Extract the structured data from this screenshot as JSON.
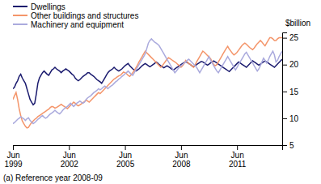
{
  "chart_data": {
    "type": "line",
    "y_label": "$billion",
    "annotations": [
      "(a) Reference year 2008-09"
    ],
    "ylim": [
      5,
      26
    ],
    "yticks": [
      5,
      10,
      15,
      20,
      25
    ],
    "grid": false,
    "legend": "upper left",
    "categories": [
      "Jun\n1999",
      null,
      null,
      null,
      null,
      null,
      null,
      null,
      null,
      null,
      null,
      null,
      null,
      null,
      null,
      null,
      null,
      null,
      null,
      null,
      null,
      null,
      null,
      null,
      null,
      null,
      null,
      null,
      null,
      null,
      null,
      null,
      null,
      null,
      null,
      null,
      "Jun\n2002",
      null,
      null,
      null,
      null,
      null,
      null,
      null,
      null,
      null,
      null,
      null,
      null,
      null,
      null,
      null,
      null,
      null,
      null,
      null,
      null,
      null,
      null,
      null,
      null,
      null,
      null,
      null,
      null,
      null,
      null,
      null,
      null,
      null,
      null,
      null,
      "Jun\n2005",
      null,
      null,
      null,
      null,
      null,
      null,
      null,
      null,
      null,
      null,
      null,
      null,
      null,
      null,
      null,
      null,
      null,
      null,
      null,
      null,
      null,
      null,
      null,
      null,
      null,
      null,
      null,
      null,
      null,
      null,
      null,
      null,
      null,
      null,
      null,
      "Jun\n2008",
      null,
      null,
      null,
      null,
      null,
      null,
      null,
      null,
      null,
      null,
      null,
      null,
      null,
      null,
      null,
      null,
      null,
      null,
      null,
      null,
      null,
      null,
      null,
      null,
      null,
      null,
      null,
      null,
      null,
      null,
      null,
      null,
      null,
      null,
      null,
      "Jun\n2011",
      null,
      null,
      null,
      null,
      null,
      null,
      null,
      null,
      null,
      null,
      null,
      null,
      null,
      null,
      null,
      null,
      null,
      null,
      null,
      null,
      null,
      null,
      null,
      null,
      null,
      null,
      null,
      null,
      null
    ],
    "series": [
      {
        "name": "Dwellings",
        "color": "#1a1a6e",
        "values": [
          15.5,
          15.8,
          16.5,
          17.0,
          17.8,
          18.2,
          17.5,
          17.0,
          16.5,
          15.5,
          14.5,
          13.5,
          13.0,
          12.5,
          12.8,
          14.5,
          16.5,
          17.5,
          18.0,
          18.5,
          18.8,
          18.5,
          18.2,
          18.0,
          18.5,
          19.0,
          19.2,
          19.5,
          19.2,
          19.0,
          18.8,
          18.5,
          18.8,
          19.0,
          19.2,
          19.0,
          18.8,
          18.5,
          18.2,
          18.0,
          17.5,
          17.2,
          17.0,
          17.2,
          17.5,
          17.8,
          18.0,
          18.2,
          18.5,
          18.5,
          18.2,
          18.0,
          17.8,
          17.5,
          17.2,
          17.0,
          16.8,
          16.5,
          17.0,
          17.5,
          18.0,
          18.5,
          18.8,
          19.0,
          19.2,
          19.5,
          19.2,
          19.0,
          18.8,
          19.0,
          19.2,
          19.5,
          19.8,
          20.0,
          20.2,
          19.8,
          19.5,
          19.2,
          19.0,
          18.8,
          19.0,
          19.2,
          19.5,
          19.8,
          20.0,
          20.2,
          20.0,
          19.8,
          19.6,
          19.8,
          20.0,
          20.2,
          20.5,
          20.3,
          20.0,
          19.8,
          19.6,
          19.4,
          19.6,
          19.8,
          19.6,
          19.4,
          19.2,
          19.0,
          19.2,
          19.4,
          19.6,
          19.8,
          20.0,
          20.2,
          20.4,
          20.5,
          20.4,
          20.2,
          20.0,
          19.8,
          19.6,
          19.8,
          20.0,
          20.2,
          20.4,
          20.6,
          20.5,
          20.3,
          20.1,
          19.9,
          20.1,
          20.3,
          20.5,
          20.7,
          20.5,
          20.3,
          20.1,
          19.9,
          19.7,
          19.5,
          19.3,
          19.1,
          18.9,
          18.7,
          19.0,
          19.3,
          19.6,
          19.9,
          20.2,
          20.5,
          20.3,
          20.1,
          19.9,
          19.7,
          19.5,
          19.8,
          20.1,
          20.4,
          20.7,
          20.5,
          20.3,
          20.1,
          19.9,
          20.1,
          20.3,
          20.5,
          20.7,
          20.5,
          20.3,
          20.1,
          19.9,
          19.7,
          19.5,
          19.8,
          20.1,
          20.4,
          20.7,
          21.0
        ]
      },
      {
        "name": "Other buildings and structures",
        "color": "#f4956a",
        "values": [
          13.5,
          14.2,
          14.8,
          13.5,
          11.8,
          10.5,
          9.5,
          9.0,
          8.5,
          8.2,
          8.3,
          8.8,
          9.2,
          9.5,
          9.8,
          10.0,
          10.3,
          10.5,
          10.7,
          10.9,
          11.1,
          11.3,
          11.5,
          11.7,
          12.0,
          12.2,
          12.1,
          11.9,
          12.0,
          12.2,
          12.4,
          12.6,
          12.4,
          12.2,
          12.0,
          11.8,
          12.1,
          12.4,
          12.7,
          13.0,
          12.8,
          12.5,
          12.3,
          12.5,
          12.7,
          12.9,
          13.1,
          13.4,
          13.2,
          13.0,
          13.3,
          13.6,
          13.9,
          14.2,
          14.5,
          14.8,
          14.6,
          14.9,
          15.2,
          15.5,
          15.8,
          16.1,
          16.4,
          16.7,
          17.0,
          17.3,
          17.5,
          17.7,
          17.9,
          18.0,
          18.3,
          18.6,
          18.5,
          18.3,
          18.0,
          17.8,
          18.1,
          18.5,
          18.9,
          19.4,
          19.9,
          20.5,
          21.0,
          21.5,
          22.0,
          22.5,
          22.2,
          21.9,
          21.6,
          21.3,
          21.0,
          20.7,
          20.4,
          20.1,
          19.8,
          19.5,
          19.8,
          20.2,
          20.6,
          21.0,
          21.3,
          21.1,
          20.9,
          20.7,
          20.5,
          20.3,
          20.0,
          19.8,
          19.5,
          19.8,
          20.2,
          20.8,
          20.5,
          20.2,
          20.0,
          19.8,
          19.5,
          19.9,
          20.5,
          21.0,
          21.5,
          22.0,
          22.5,
          22.3,
          22.0,
          21.7,
          21.4,
          21.1,
          20.5,
          20.0,
          19.8,
          20.0,
          20.5,
          21.0,
          21.5,
          22.0,
          22.5,
          23.0,
          23.4,
          22.9,
          22.5,
          22.1,
          21.8,
          22.0,
          22.3,
          22.7,
          23.1,
          23.5,
          23.8,
          24.0,
          23.8,
          23.5,
          23.2,
          23.0,
          22.8,
          23.1,
          23.5,
          23.9,
          24.2,
          24.5,
          24.2,
          23.8,
          23.5,
          24.0,
          24.5,
          25.0,
          25.0,
          24.8,
          24.5,
          24.5,
          24.8,
          25.0,
          25.0,
          25.0
        ]
      },
      {
        "name": "Machinery and equipment",
        "color": "#aaaadd",
        "values": [
          9.0,
          9.2,
          9.5,
          9.8,
          10.0,
          10.3,
          10.1,
          9.9,
          9.6,
          9.9,
          10.1,
          9.6,
          9.3,
          9.0,
          9.2,
          9.5,
          9.8,
          10.0,
          10.3,
          10.5,
          10.2,
          10.0,
          10.2,
          10.5,
          10.8,
          11.0,
          11.2,
          11.5,
          11.2,
          11.0,
          10.8,
          11.1,
          11.5,
          11.8,
          12.0,
          12.2,
          12.5,
          12.8,
          12.5,
          12.2,
          12.5,
          12.8,
          13.0,
          13.2,
          13.0,
          12.8,
          13.0,
          13.5,
          13.8,
          14.0,
          14.2,
          14.5,
          14.8,
          15.0,
          15.2,
          15.5,
          15.3,
          15.5,
          15.8,
          16.0,
          15.8,
          15.5,
          15.8,
          16.0,
          16.2,
          16.5,
          16.8,
          17.0,
          17.3,
          17.5,
          17.8,
          18.0,
          18.3,
          18.5,
          18.8,
          18.5,
          18.2,
          18.0,
          18.5,
          19.0,
          19.5,
          20.0,
          20.5,
          21.0,
          21.5,
          22.0,
          23.0,
          24.0,
          24.5,
          24.8,
          24.5,
          24.2,
          24.0,
          23.8,
          23.5,
          23.0,
          22.5,
          22.0,
          21.5,
          21.0,
          20.5,
          20.0,
          19.5,
          19.0,
          18.5,
          18.8,
          19.2,
          19.5,
          19.8,
          20.0,
          20.3,
          20.5,
          20.8,
          21.0,
          20.7,
          20.4,
          20.1,
          19.8,
          19.5,
          19.0,
          18.5,
          19.0,
          19.5,
          20.0,
          20.5,
          21.0,
          21.5,
          20.8,
          20.3,
          19.8,
          19.3,
          18.8,
          18.5,
          19.0,
          19.5,
          20.0,
          20.5,
          21.0,
          21.5,
          21.0,
          20.5,
          20.0,
          19.5,
          19.0,
          19.5,
          20.0,
          20.5,
          21.0,
          21.5,
          22.0,
          22.3,
          21.8,
          21.3,
          20.8,
          20.3,
          19.8,
          19.3,
          18.8,
          19.2,
          19.8,
          20.5,
          21.2,
          20.8,
          20.3,
          20.8,
          21.5,
          22.0,
          22.5,
          21.8,
          20.5,
          20.8,
          21.5,
          22.0,
          22.5
        ]
      }
    ]
  }
}
